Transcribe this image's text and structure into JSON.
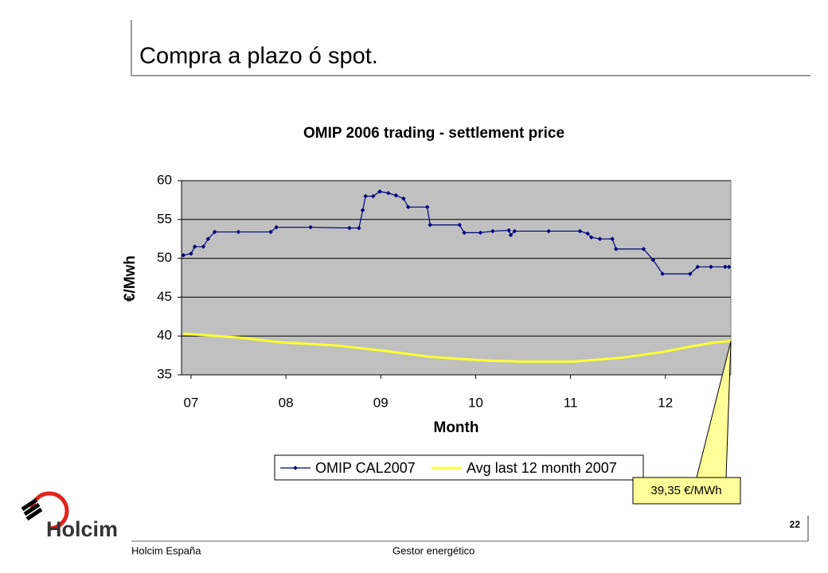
{
  "slide": {
    "title": "Compra a plazo ó spot.",
    "logo": "Holcim",
    "footer_left": "Holcim España",
    "footer_center": "Gestor energético",
    "page_number": "22"
  },
  "chart_data": {
    "type": "line",
    "title": "OMIP 2006 trading - settlement price",
    "x_label": "Month",
    "y_label": "€/Mwh",
    "xlim": [
      6.9,
      12.69
    ],
    "xticks": [
      {
        "value": 7,
        "label": "07"
      },
      {
        "value": 8,
        "label": "08"
      },
      {
        "value": 9,
        "label": "09"
      },
      {
        "value": 10,
        "label": "10"
      },
      {
        "value": 11,
        "label": "11"
      },
      {
        "value": 12,
        "label": "12"
      }
    ],
    "ylim": [
      35,
      60
    ],
    "yticks": [
      35,
      40,
      45,
      50,
      55,
      60
    ],
    "grid": true,
    "annotation": "39,35 €/MWh",
    "series": [
      {
        "name": "OMIP CAL2007",
        "color": "#000080",
        "marker": "diamond",
        "x": [
          6.92,
          7.0,
          7.04,
          7.13,
          7.18,
          7.25,
          7.5,
          7.84,
          7.9,
          8.26,
          8.67,
          8.77,
          8.81,
          8.84,
          8.92,
          8.99,
          9.08,
          9.16,
          9.24,
          9.29,
          9.49,
          9.52,
          9.83,
          9.88,
          10.05,
          10.18,
          10.35,
          10.37,
          10.41,
          10.77,
          11.1,
          11.18,
          11.22,
          11.31,
          11.44,
          11.48,
          11.77,
          11.87,
          11.97,
          12.26,
          12.34,
          12.48,
          12.63,
          12.67
        ],
        "values": [
          50.4,
          50.6,
          51.5,
          51.5,
          52.5,
          53.4,
          53.4,
          53.4,
          54.0,
          54.0,
          53.9,
          53.9,
          56.2,
          58.0,
          58.0,
          58.6,
          58.4,
          58.1,
          57.7,
          56.6,
          56.6,
          54.3,
          54.3,
          53.3,
          53.3,
          53.5,
          53.6,
          53.0,
          53.5,
          53.5,
          53.5,
          53.2,
          52.7,
          52.5,
          52.5,
          51.2,
          51.2,
          49.8,
          48.0,
          48.0,
          48.9,
          48.9,
          48.9,
          48.9
        ]
      },
      {
        "name": "Avg last 12 month 2007",
        "color": "#ffff33",
        "x": [
          6.92,
          7.51,
          7.93,
          8.51,
          9.03,
          9.53,
          10.03,
          10.45,
          11.03,
          11.54,
          11.95,
          12.29,
          12.54,
          12.69
        ],
        "values": [
          40.3,
          39.8,
          39.2,
          38.8,
          38.1,
          37.3,
          36.9,
          36.7,
          36.7,
          37.2,
          37.9,
          38.7,
          39.2,
          39.35
        ]
      }
    ]
  }
}
